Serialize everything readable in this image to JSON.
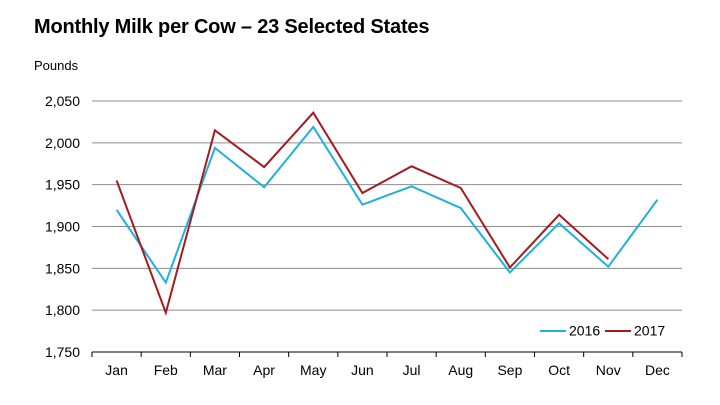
{
  "chart_data": {
    "type": "line",
    "title": "Monthly Milk per Cow – 23 Selected States",
    "ylabel": "Pounds",
    "xlabel": "",
    "categories": [
      "Jan",
      "Feb",
      "Mar",
      "Apr",
      "May",
      "Jun",
      "Jul",
      "Aug",
      "Sep",
      "Oct",
      "Nov",
      "Dec"
    ],
    "ylim": [
      1750,
      2050
    ],
    "yticks": [
      1750,
      1800,
      1850,
      1900,
      1950,
      2000,
      2050
    ],
    "ytick_labels": [
      "1,750",
      "1,800",
      "1,850",
      "1,900",
      "1,950",
      "2,000",
      "2,050"
    ],
    "grid": true,
    "legend_position": "bottom-right",
    "series": [
      {
        "name": "2016",
        "color": "#1fb1d9",
        "values": [
          1920,
          1833,
          1994,
          1947,
          2019,
          1926,
          1948,
          1922,
          1845,
          1904,
          1852,
          1932
        ]
      },
      {
        "name": "2017",
        "color": "#a31a1f",
        "values": [
          1955,
          1797,
          2015,
          1971,
          2036,
          1940,
          1972,
          1946,
          1851,
          1914,
          1861,
          null
        ]
      }
    ]
  }
}
